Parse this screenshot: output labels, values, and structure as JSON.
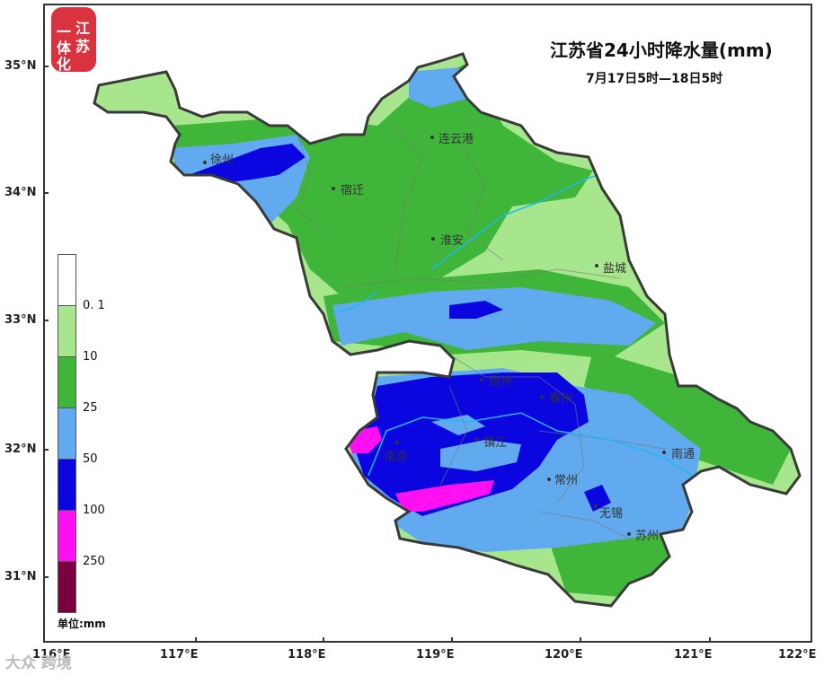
{
  "title": "江苏省24小时降水量(mm)",
  "subtitle": "7月17日5时—18日5时",
  "logo_text": "江苏一体化",
  "watermark": "大众 跨境",
  "lat_labels": [
    "35°N",
    "34°N",
    "33°N",
    "32°N",
    "31°N"
  ],
  "lon_labels": [
    "116°E",
    "117°E",
    "118°E",
    "119°E",
    "120°E",
    "121°E",
    "122°E"
  ],
  "cities": [
    {
      "name": "徐州"
    },
    {
      "name": "连云港"
    },
    {
      "name": "宿迁"
    },
    {
      "name": "淮安"
    },
    {
      "name": "盐城"
    },
    {
      "name": "扬州"
    },
    {
      "name": "泰州"
    },
    {
      "name": "南京"
    },
    {
      "name": "镇江"
    },
    {
      "name": "常州"
    },
    {
      "name": "南通"
    },
    {
      "name": "无锡"
    },
    {
      "name": "苏州"
    }
  ],
  "legend": {
    "labels": [
      "0. 1",
      "10",
      "25",
      "50",
      "100",
      "250"
    ],
    "colors": [
      "#ffffff",
      "#a8e68e",
      "#3fb53a",
      "#61aaf0",
      "#0b06e0",
      "#ff10f2",
      "#7a0040"
    ],
    "unit": "单位:mm"
  }
}
